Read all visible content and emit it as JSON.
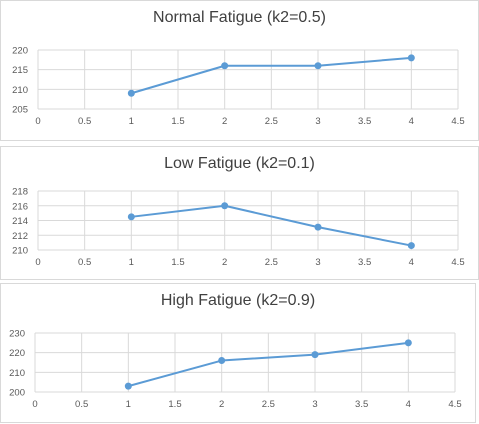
{
  "chart_data": [
    {
      "type": "line",
      "title": "Normal Fatigue (k2=0.5)",
      "x": [
        1,
        2,
        3,
        4
      ],
      "series": [
        {
          "values": [
            209,
            216,
            216,
            218
          ],
          "color": "#5b9bd5"
        }
      ],
      "xlim": [
        0,
        4.5
      ],
      "ylim": [
        205,
        220
      ],
      "xticks": [
        "0",
        "0.5",
        "1",
        "1.5",
        "2",
        "2.5",
        "3",
        "3.5",
        "4",
        "4.5"
      ],
      "yticks": [
        "205",
        "210",
        "215",
        "220"
      ],
      "xlabel": "",
      "ylabel": "",
      "grid": true,
      "legend": "none"
    },
    {
      "type": "line",
      "title": "Low Fatigue (k2=0.1)",
      "x": [
        1,
        2,
        3,
        4
      ],
      "series": [
        {
          "values": [
            214.5,
            216,
            213.1,
            210.6
          ],
          "color": "#5b9bd5"
        }
      ],
      "xlim": [
        0,
        4.5
      ],
      "ylim": [
        210,
        218
      ],
      "xticks": [
        "0",
        "0.5",
        "1",
        "1.5",
        "2",
        "2.5",
        "3",
        "3.5",
        "4",
        "4.5"
      ],
      "yticks": [
        "210",
        "212",
        "214",
        "216",
        "218"
      ],
      "xlabel": "",
      "ylabel": "",
      "grid": true,
      "legend": "none"
    },
    {
      "type": "line",
      "title": "High Fatigue (k2=0.9)",
      "x": [
        1,
        2,
        3,
        4
      ],
      "series": [
        {
          "values": [
            203,
            216,
            219,
            225
          ],
          "color": "#5b9bd5"
        }
      ],
      "xlim": [
        0,
        4.5
      ],
      "ylim": [
        200,
        230
      ],
      "xticks": [
        "0",
        "0.5",
        "1",
        "1.5",
        "2",
        "2.5",
        "3",
        "3.5",
        "4",
        "4.5"
      ],
      "yticks": [
        "200",
        "210",
        "220",
        "230"
      ],
      "xlabel": "",
      "ylabel": "",
      "grid": true,
      "legend": "none"
    }
  ]
}
